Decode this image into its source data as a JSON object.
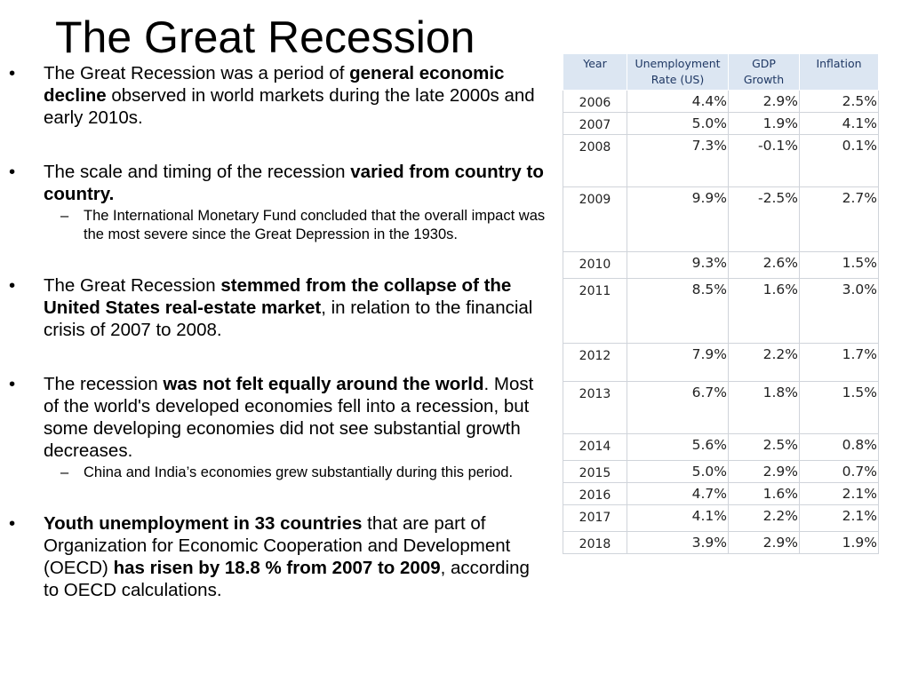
{
  "slide": {
    "title": "The Great Recession"
  },
  "bullets": [
    {
      "parts": [
        {
          "text": "The Great Recession was a period of ",
          "bold": false
        },
        {
          "text": "general economic decline",
          "bold": true
        },
        {
          "text": " observed in world markets during the late 2000s and early 2010s.",
          "bold": false
        }
      ]
    },
    {
      "parts": [
        {
          "text": "The scale and timing of the recession ",
          "bold": false
        },
        {
          "text": "varied from country to country.",
          "bold": true
        }
      ],
      "sub": "The International Monetary Fund concluded that the overall impact was the most severe since the Great Depression in the 1930s."
    },
    {
      "parts": [
        {
          "text": "The Great Recession ",
          "bold": false
        },
        {
          "text": "stemmed from the collapse of the United States real-estate market",
          "bold": true
        },
        {
          "text": ", in relation to the financial crisis of 2007 to 2008.",
          "bold": false
        }
      ]
    },
    {
      "parts": [
        {
          "text": "The recession ",
          "bold": false
        },
        {
          "text": "was not felt equally around the world",
          "bold": true
        },
        {
          "text": ". Most of the world's developed economies fell into a recession, but some developing economies did not see substantial growth decreases.",
          "bold": false
        }
      ],
      "sub": "China and India’s economies grew substantially during this period."
    },
    {
      "parts": [
        {
          "text": "Youth unemployment in 33 countries",
          "bold": true
        },
        {
          "text": " that are part of Organization for Economic Cooperation and Development (OECD) ",
          "bold": false
        },
        {
          "text": "has risen by 18.8 % from 2007 to 2009",
          "bold": true
        },
        {
          "text": ", according to OECD calculations.",
          "bold": false
        }
      ]
    }
  ],
  "table": {
    "headers": {
      "year": "Year",
      "unemployment_line1": "Unemployment",
      "unemployment_line2": "Rate (US)",
      "gdp_line1": "GDP",
      "gdp_line2": "Growth",
      "inflation": "Inflation"
    },
    "rows": [
      {
        "year": "2006",
        "unemployment": "4.4%",
        "gdp": "2.9%",
        "inflation": "2.5%"
      },
      {
        "year": "2007",
        "unemployment": "5.0%",
        "gdp": "1.9%",
        "inflation": "4.1%"
      },
      {
        "year": "2008",
        "unemployment": "7.3%",
        "gdp": "-0.1%",
        "inflation": "0.1%"
      },
      {
        "year": "2009",
        "unemployment": "9.9%",
        "gdp": "-2.5%",
        "inflation": "2.7%"
      },
      {
        "year": "2010",
        "unemployment": "9.3%",
        "gdp": "2.6%",
        "inflation": "1.5%"
      },
      {
        "year": "2011",
        "unemployment": "8.5%",
        "gdp": "1.6%",
        "inflation": "3.0%"
      },
      {
        "year": "2012",
        "unemployment": "7.9%",
        "gdp": "2.2%",
        "inflation": "1.7%"
      },
      {
        "year": "2013",
        "unemployment": "6.7%",
        "gdp": "1.8%",
        "inflation": "1.5%"
      },
      {
        "year": "2014",
        "unemployment": "5.6%",
        "gdp": "2.5%",
        "inflation": "0.8%"
      },
      {
        "year": "2015",
        "unemployment": "5.0%",
        "gdp": "2.9%",
        "inflation": "0.7%"
      },
      {
        "year": "2016",
        "unemployment": "4.7%",
        "gdp": "1.6%",
        "inflation": "2.1%"
      },
      {
        "year": "2017",
        "unemployment": "4.1%",
        "gdp": "2.2%",
        "inflation": "2.1%"
      },
      {
        "year": "2018",
        "unemployment": "3.9%",
        "gdp": "2.9%",
        "inflation": "1.9%"
      }
    ]
  }
}
